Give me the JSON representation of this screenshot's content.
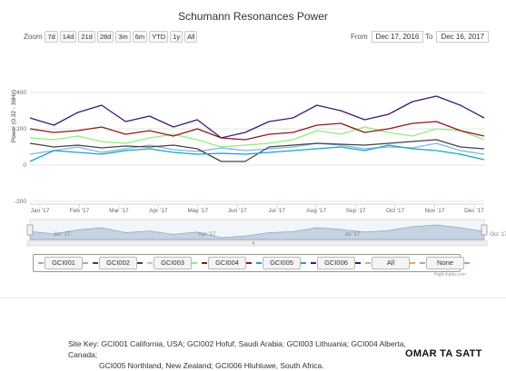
{
  "title": "Schumann Resonances Power",
  "zoom": {
    "label": "Zoom",
    "buttons": [
      "7d",
      "14d",
      "21d",
      "28d",
      "3m",
      "6m",
      "YTD",
      "1y",
      "All"
    ]
  },
  "range": {
    "from_label": "From",
    "from_value": "Dec 17, 2016",
    "to_label": "To",
    "to_value": "Dec 16, 2017"
  },
  "legend_buttons": {
    "all": "All",
    "none": "None"
  },
  "credit": "Highcharts.com",
  "site_key": {
    "label": "Site Key:",
    "line1": "GCI001 California, USA; GCI002 Hofuf, Saudi Arabia; GCI003 Lithuania; GCI004 Alberta, Canada;",
    "line2": "GCI005 Northland, New Zealand; GCI006 Hluhluwe, South Africa."
  },
  "watermark": "OMAR TA SATT",
  "colors": {
    "axis_text": "#666666",
    "grid": "#e6e6e6",
    "navigator_fill": "#c5d3e2"
  },
  "chart_data": {
    "type": "line",
    "title": "Schumann Resonances Power",
    "ylabel": "Power (0.32 - 36Hz)",
    "ylim": [
      -200,
      600
    ],
    "y_ticks": [
      "400",
      "200",
      "0",
      "-200"
    ],
    "x_ticks": [
      "Jan '17",
      "Feb '17",
      "Mar '17",
      "Apr '17",
      "May '17",
      "Jun '17",
      "Jul '17",
      "Aug '17",
      "Sep '17",
      "Oct '17",
      "Nov '17",
      "Dec '17"
    ],
    "navigator_ticks": [
      "Jan '17",
      "Apr '17",
      "Jul '17",
      "Oct '17"
    ],
    "x": [
      "Dec 18",
      "Jan 6",
      "Jan 25",
      "Feb 13",
      "Mar 4",
      "Mar 23",
      "Apr 11",
      "Apr 30",
      "May 19",
      "Jun 7",
      "Jun 26",
      "Jul 15",
      "Aug 3",
      "Aug 22",
      "Sep 10",
      "Sep 29",
      "Oct 18",
      "Nov 6",
      "Nov 25",
      "Dec 14"
    ],
    "series": [
      {
        "name": "GCI001",
        "color": "#7cb5ec",
        "values": [
          60,
          80,
          100,
          70,
          90,
          110,
          85,
          75,
          95,
          80,
          90,
          100,
          120,
          110,
          90,
          100,
          95,
          120,
          80,
          60
        ]
      },
      {
        "name": "GCI002",
        "color": "#434348",
        "values": [
          120,
          100,
          110,
          95,
          105,
          100,
          110,
          90,
          20,
          20,
          100,
          110,
          120,
          115,
          110,
          120,
          130,
          140,
          100,
          90
        ]
      },
      {
        "name": "GCI003",
        "color": "#90ed7d",
        "values": [
          150,
          140,
          160,
          130,
          120,
          150,
          170,
          140,
          100,
          110,
          120,
          140,
          190,
          170,
          210,
          180,
          160,
          200,
          190,
          140
        ]
      },
      {
        "name": "GCI004",
        "color": "#8b1a1a",
        "values": [
          200,
          180,
          190,
          210,
          170,
          190,
          160,
          200,
          150,
          140,
          170,
          180,
          220,
          230,
          180,
          200,
          230,
          240,
          190,
          160
        ]
      },
      {
        "name": "GCI005",
        "color": "#1aa3c6",
        "values": [
          20,
          80,
          70,
          60,
          80,
          90,
          70,
          60,
          65,
          60,
          70,
          80,
          90,
          100,
          80,
          110,
          90,
          80,
          60,
          30
        ]
      },
      {
        "name": "GCI006",
        "color": "#3d1a6e",
        "values": [
          260,
          220,
          290,
          330,
          240,
          270,
          210,
          250,
          150,
          180,
          240,
          260,
          330,
          300,
          250,
          280,
          350,
          380,
          330,
          260
        ]
      }
    ]
  }
}
